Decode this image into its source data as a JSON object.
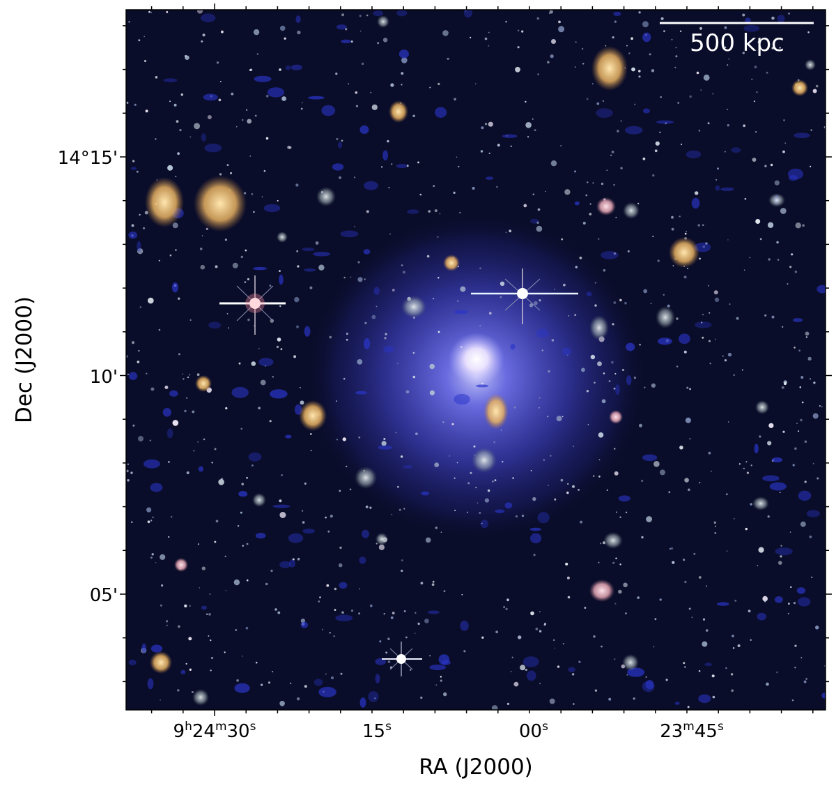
{
  "figure": {
    "background": "#0a0d2a",
    "halo_color": "#5a5cff",
    "scale_bar": {
      "label": "500 kpc",
      "color": "#ffffff"
    },
    "x_axis": {
      "label": "RA (J2000)",
      "ticks": [
        {
          "h": "9",
          "m": "24",
          "s": "30"
        },
        {
          "s": "15"
        },
        {
          "s": "00"
        },
        {
          "m": "23",
          "s": "45"
        }
      ]
    },
    "y_axis": {
      "label": "Dec (J2000)",
      "ticks": [
        "14°15'",
        "10'",
        "05'"
      ]
    }
  }
}
